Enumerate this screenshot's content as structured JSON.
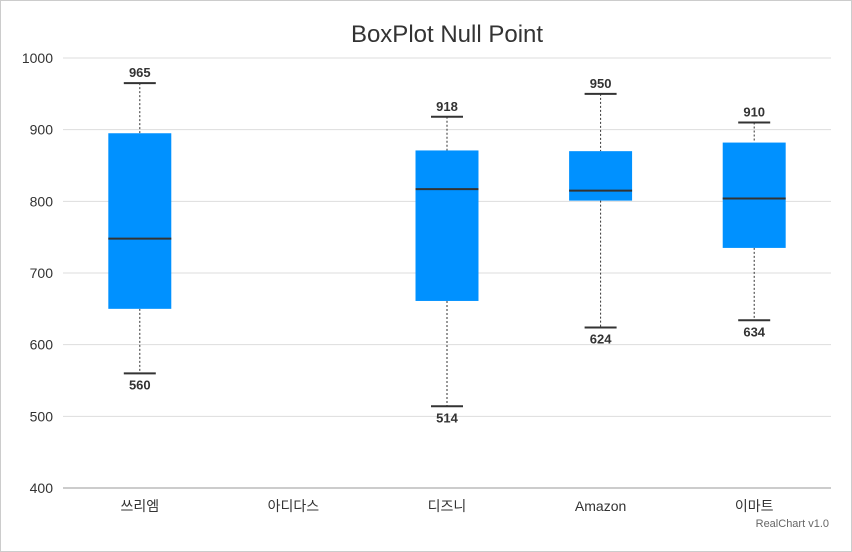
{
  "chart_data": {
    "type": "boxplot",
    "title": "BoxPlot Null Point",
    "credit": "RealChart v1.0",
    "ylim": [
      400,
      1000
    ],
    "yticks": [
      400,
      500,
      600,
      700,
      800,
      900,
      1000
    ],
    "grid": true,
    "box_color": "#0091ff",
    "categories": [
      "쓰리엠",
      "아디다스",
      "디즈니",
      "Amazon",
      "이마트"
    ],
    "data": [
      {
        "min": 560,
        "q1": 650,
        "median": 748,
        "q3": 895,
        "max": 965
      },
      null,
      {
        "min": 514,
        "q1": 661,
        "median": 817,
        "q3": 871,
        "max": 918
      },
      {
        "min": 624,
        "q1": 801,
        "median": 815,
        "q3": 870,
        "max": 950
      },
      {
        "min": 634,
        "q1": 735,
        "median": 804,
        "q3": 882,
        "max": 910
      }
    ]
  }
}
